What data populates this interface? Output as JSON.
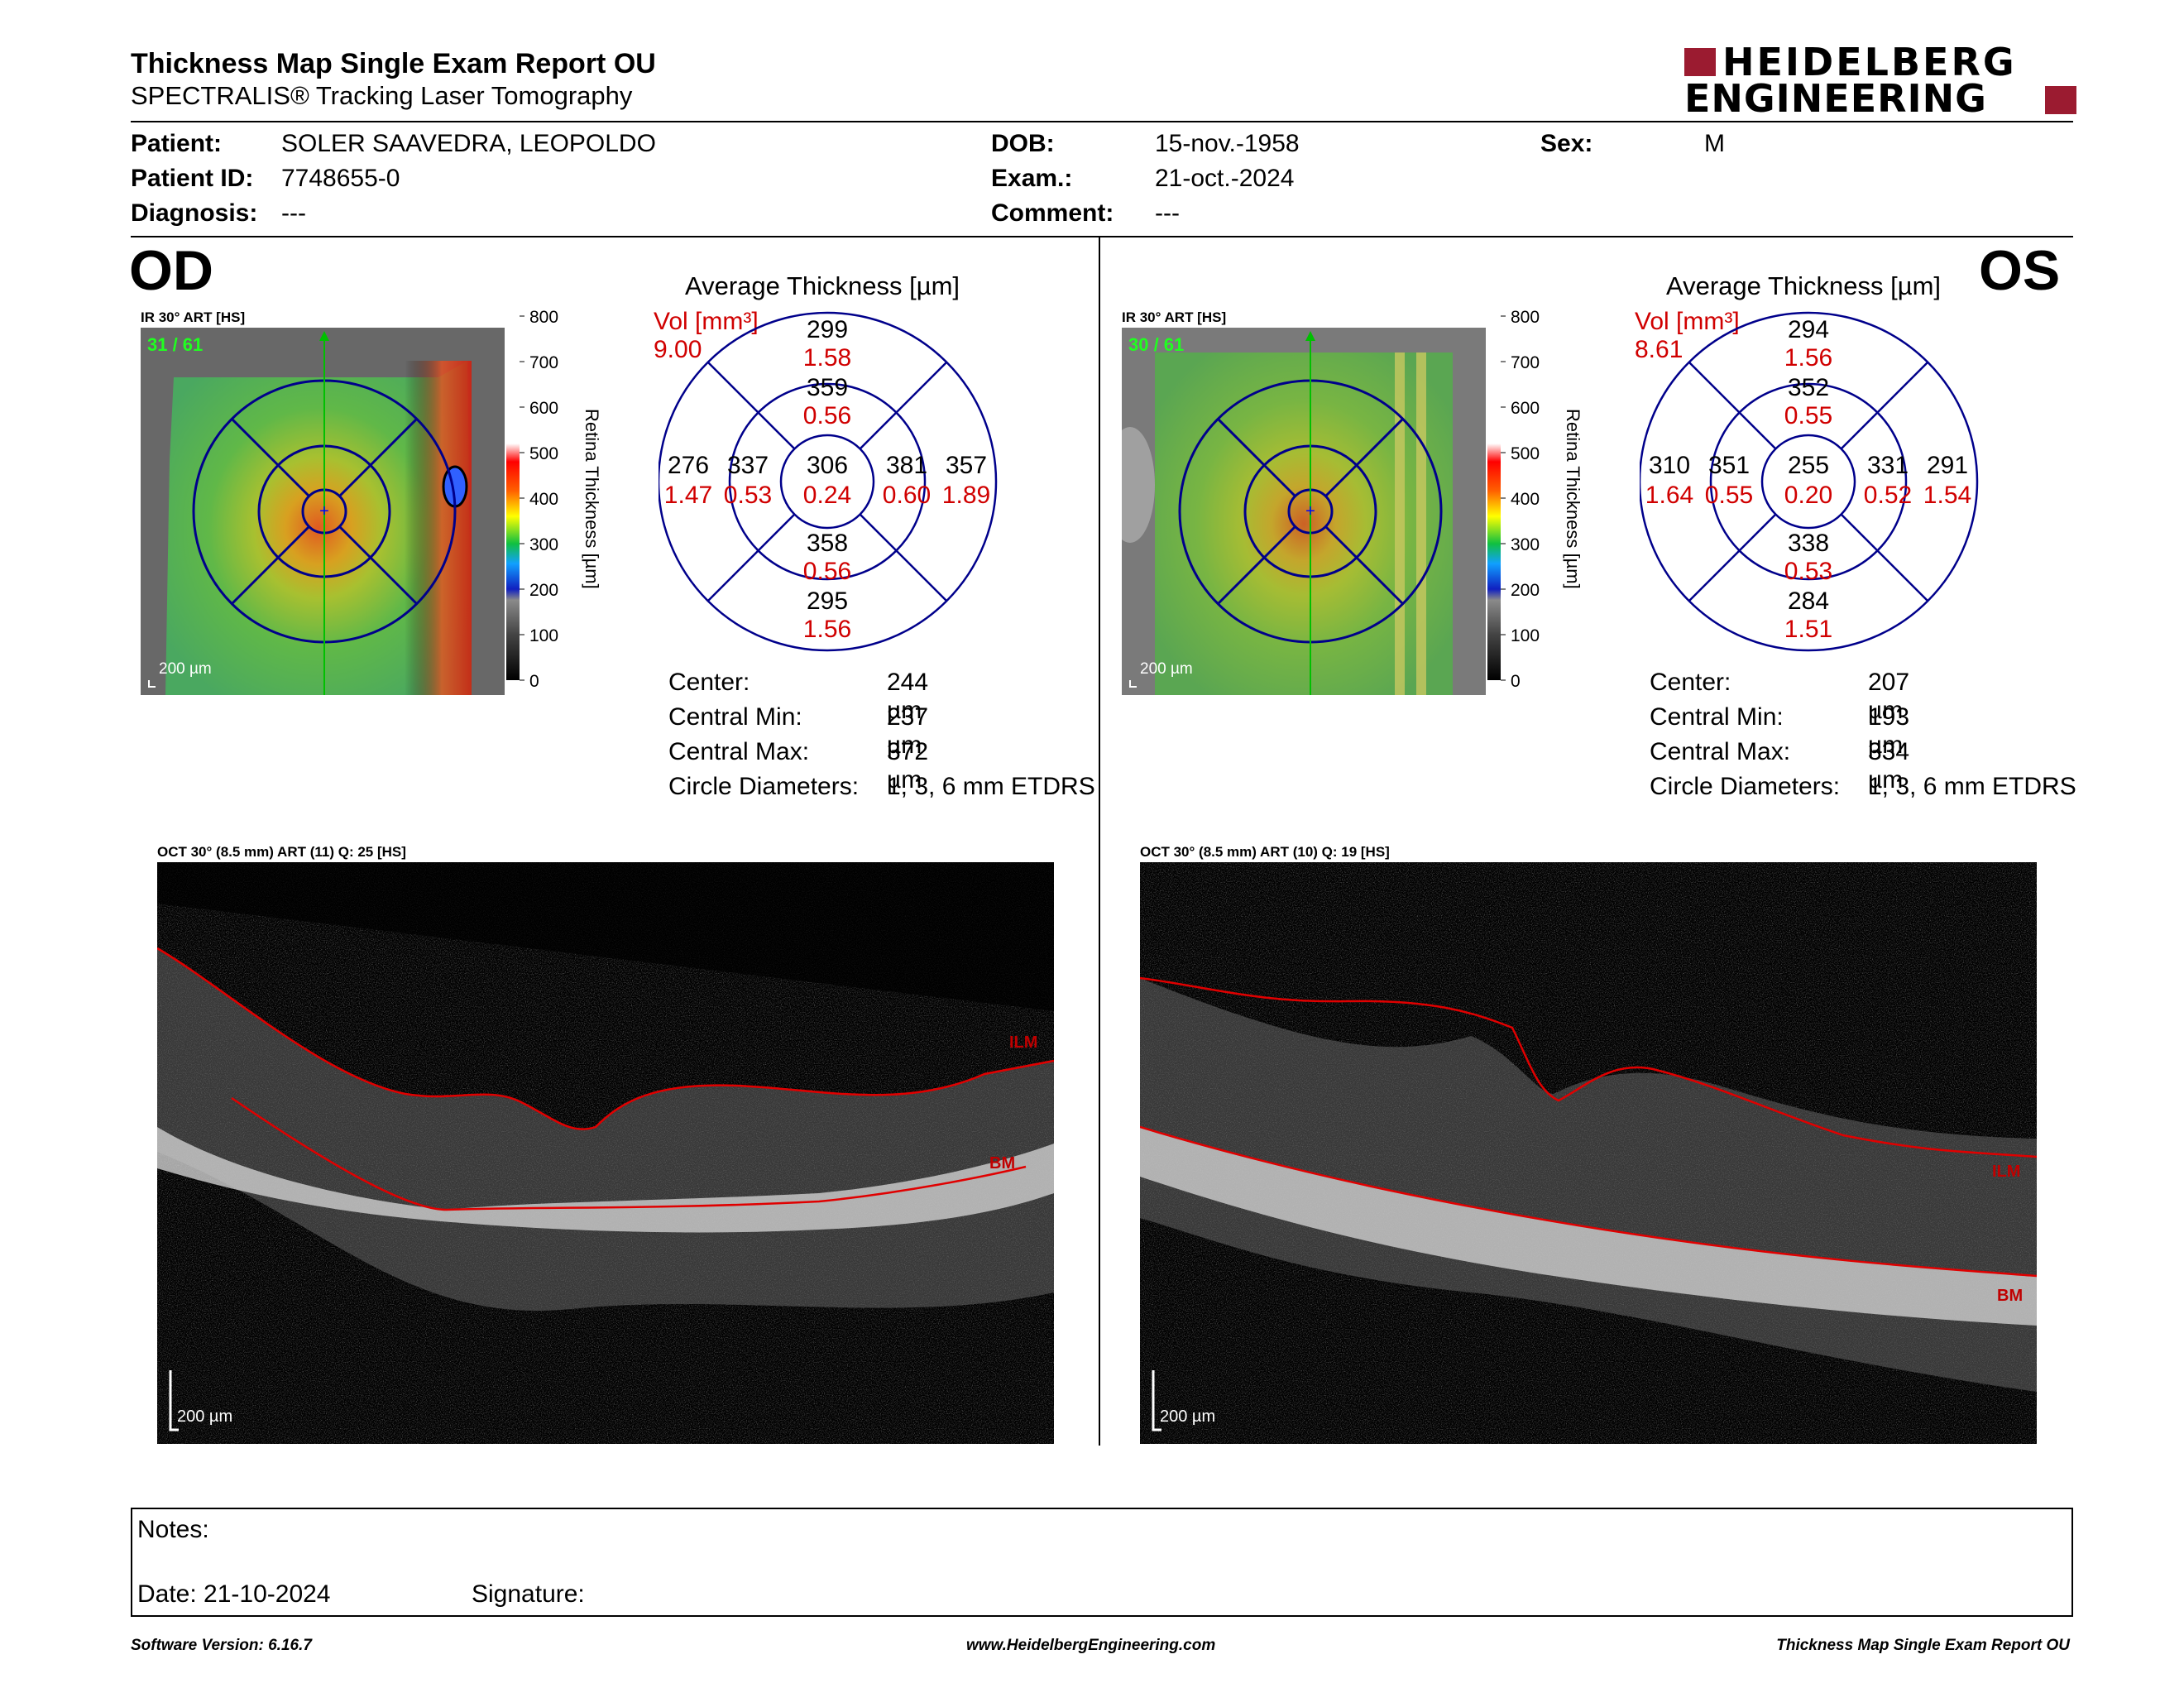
{
  "header": {
    "title": "Thickness Map Single Exam Report OU",
    "subtitle": "SPECTRALIS® Tracking Laser Tomography",
    "logo_line1": "HEIDELBERG",
    "logo_line2": "ENGINEERING",
    "brand_color": "#9b1b30"
  },
  "patient": {
    "patient_label": "Patient:",
    "patient_value": "SOLER SAAVEDRA, LEOPOLDO",
    "id_label": "Patient ID:",
    "id_value": "7748655-0",
    "diagnosis_label": "Diagnosis:",
    "diagnosis_value": "---",
    "dob_label": "DOB:",
    "dob_value": "15-nov.-1958",
    "exam_label": "Exam.:",
    "exam_value": "21-oct.-2024",
    "comment_label": "Comment:",
    "comment_value": "---",
    "sex_label": "Sex:",
    "sex_value": "M"
  },
  "scale": {
    "ticks": [
      "800",
      "700",
      "600",
      "500",
      "400",
      "300",
      "200",
      "100",
      "0"
    ],
    "label": "Retina Thickness [µm]"
  },
  "od": {
    "eye": "OD",
    "ir_label": "IR 30° ART [HS]",
    "frame": "31 / 61",
    "scalebar": "200 µm",
    "avg_title": "Average Thickness [µm]",
    "vol_label": "Vol [mm³]",
    "vol_total": "9.00",
    "sectors": {
      "outer_sup": {
        "t": "299",
        "v": "1.58"
      },
      "inner_sup": {
        "t": "359",
        "v": "0.56"
      },
      "outer_temp": {
        "t": "276",
        "v": "1.47"
      },
      "inner_temp": {
        "t": "337",
        "v": "0.53"
      },
      "center": {
        "t": "306",
        "v": "0.24"
      },
      "inner_nasal": {
        "t": "381",
        "v": "0.60"
      },
      "outer_nasal": {
        "t": "357",
        "v": "1.89"
      },
      "inner_inf": {
        "t": "358",
        "v": "0.56"
      },
      "outer_inf": {
        "t": "295",
        "v": "1.56"
      }
    },
    "stats": [
      {
        "label": "Center:",
        "value": "244 µm"
      },
      {
        "label": "Central Min:",
        "value": "237 µm"
      },
      {
        "label": "Central Max:",
        "value": "372 µm"
      },
      {
        "label": "Circle Diameters:",
        "value": "1, 3, 6 mm ETDRS"
      }
    ],
    "oct_label": "OCT 30° (8.5 mm) ART (11) Q: 25 [HS]",
    "ilm": "ILM",
    "bm": "BM",
    "oct_scalebar": "200 µm"
  },
  "os": {
    "eye": "OS",
    "ir_label": "IR 30° ART [HS]",
    "frame": "30 / 61",
    "scalebar": "200 µm",
    "avg_title": "Average Thickness [µm]",
    "vol_label": "Vol [mm³]",
    "vol_total": "8.61",
    "sectors": {
      "outer_sup": {
        "t": "294",
        "v": "1.56"
      },
      "inner_sup": {
        "t": "352",
        "v": "0.55"
      },
      "outer_temp": {
        "t": "310",
        "v": "1.64"
      },
      "inner_temp": {
        "t": "351",
        "v": "0.55"
      },
      "center": {
        "t": "255",
        "v": "0.20"
      },
      "inner_nasal": {
        "t": "331",
        "v": "0.52"
      },
      "outer_nasal": {
        "t": "291",
        "v": "1.54"
      },
      "inner_inf": {
        "t": "338",
        "v": "0.53"
      },
      "outer_inf": {
        "t": "284",
        "v": "1.51"
      }
    },
    "stats": [
      {
        "label": "Center:",
        "value": "207 µm"
      },
      {
        "label": "Central Min:",
        "value": "193 µm"
      },
      {
        "label": "Central Max:",
        "value": "334 µm"
      },
      {
        "label": "Circle Diameters:",
        "value": "1, 3, 6 mm ETDRS"
      }
    ],
    "oct_label": "OCT 30° (8.5 mm) ART (10) Q: 19 [HS]",
    "ilm": "ILM",
    "bm": "BM",
    "oct_scalebar": "200 µm"
  },
  "notes": {
    "notes_label": "Notes:",
    "date_label": "Date: 21-10-2024",
    "signature_label": "Signature:"
  },
  "footer": {
    "version": "Software Version: 6.16.7",
    "url": "www.HeidelbergEngineering.com",
    "report": "Thickness Map Single Exam Report OU"
  }
}
